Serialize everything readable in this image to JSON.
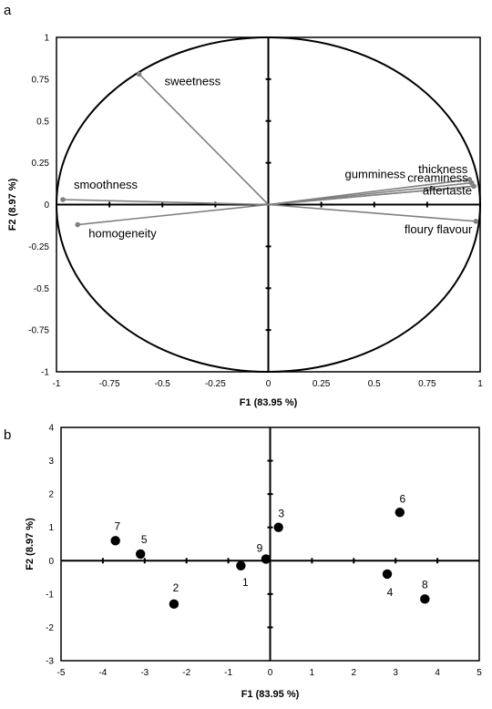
{
  "chart_data": [
    {
      "panel_label": "a",
      "type": "scatter",
      "subtype": "correlation-circle",
      "xlabel": "F1 (83.95 %)",
      "ylabel": "F2 (8.97 %)",
      "xlim": [
        -1,
        1
      ],
      "ylim": [
        -1,
        1
      ],
      "xticks": [
        "-1",
        "-0.75",
        "-0.5",
        "-0.25",
        "0",
        "0.25",
        "0.5",
        "0.75",
        "1"
      ],
      "yticks": [
        "1",
        "0.75",
        "0.5",
        "0.25",
        "0",
        "-0.25",
        "-0.5",
        "-0.75",
        "-1"
      ],
      "grid": false,
      "vectors": [
        {
          "label": "sweetness",
          "x": -0.61,
          "y": 0.78
        },
        {
          "label": "smoothness",
          "x": -0.97,
          "y": 0.03
        },
        {
          "label": "homogeneity",
          "x": -0.9,
          "y": -0.12
        },
        {
          "label": "thickness",
          "x": 0.95,
          "y": 0.15
        },
        {
          "label": "creaminess",
          "x": 0.96,
          "y": 0.13
        },
        {
          "label": "gumminess",
          "x": 0.97,
          "y": 0.11
        },
        {
          "label": "aftertaste",
          "x": 0.97,
          "y": 0.11
        },
        {
          "label": "floury flavour",
          "x": 0.98,
          "y": -0.1
        }
      ],
      "colors": {
        "vector": "#808080",
        "circle": "#000000"
      }
    },
    {
      "panel_label": "b",
      "type": "scatter",
      "xlabel": "F1 (83.95 %)",
      "ylabel": "F2 (8.97 %)",
      "xlim": [
        -5,
        5
      ],
      "ylim": [
        -3,
        4
      ],
      "xticks": [
        "-5",
        "-4",
        "-3",
        "-2",
        "-1",
        "0",
        "1",
        "2",
        "3",
        "4",
        "5"
      ],
      "yticks": [
        "4",
        "3",
        "2",
        "1",
        "0",
        "-1",
        "-2",
        "-3"
      ],
      "grid": false,
      "points": [
        {
          "label": "1",
          "x": -0.7,
          "y": -0.15
        },
        {
          "label": "2",
          "x": -2.3,
          "y": -1.3
        },
        {
          "label": "3",
          "x": 0.2,
          "y": 1.0
        },
        {
          "label": "4",
          "x": 2.8,
          "y": -0.4
        },
        {
          "label": "5",
          "x": -3.1,
          "y": 0.2
        },
        {
          "label": "6",
          "x": 3.1,
          "y": 1.45
        },
        {
          "label": "7",
          "x": -3.7,
          "y": 0.6
        },
        {
          "label": "8",
          "x": 3.7,
          "y": -1.15
        },
        {
          "label": "9",
          "x": -0.1,
          "y": 0.05
        }
      ],
      "colors": {
        "point": "#000000"
      }
    }
  ]
}
